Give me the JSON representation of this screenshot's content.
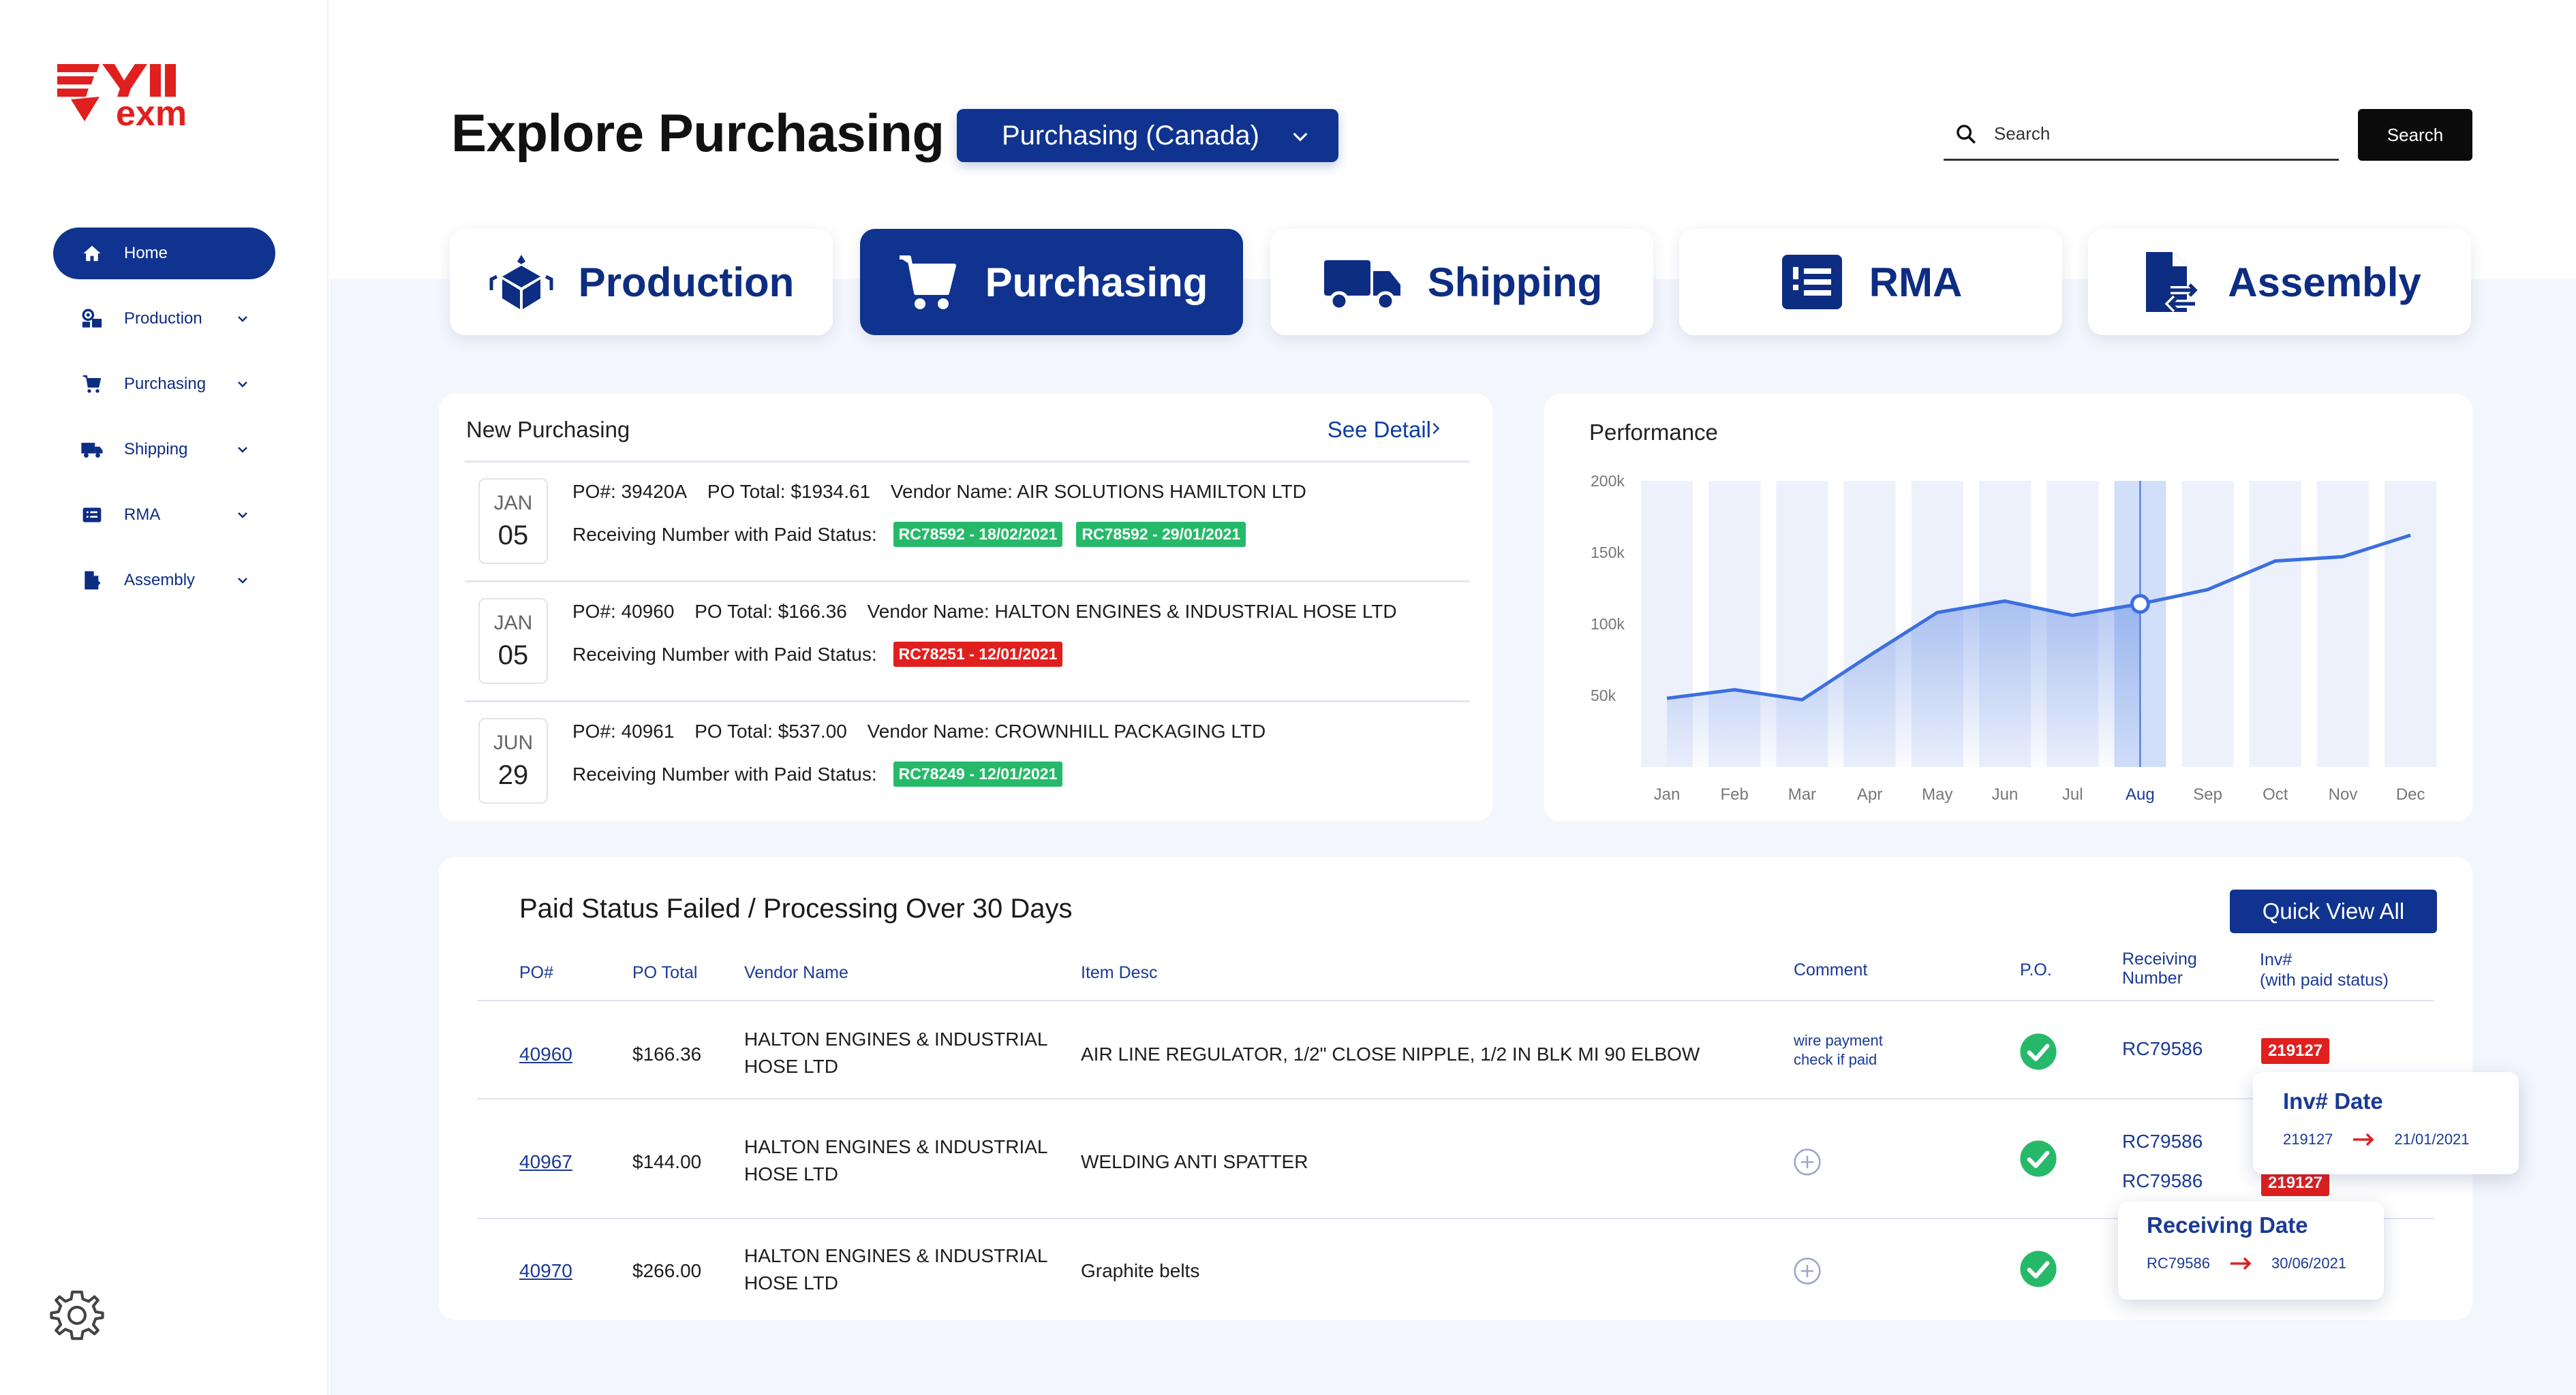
{
  "brand": {
    "logo_text": "exm",
    "accent": "#0f338f",
    "logo_red": "#e0201f"
  },
  "sidebar": {
    "items": [
      {
        "label": "Home",
        "icon": "home-icon",
        "active": true
      },
      {
        "label": "Production",
        "icon": "production-icon"
      },
      {
        "label": "Purchasing",
        "icon": "cart-icon"
      },
      {
        "label": "Shipping",
        "icon": "truck-icon"
      },
      {
        "label": "RMA",
        "icon": "list-icon"
      },
      {
        "label": "Assembly",
        "icon": "assembly-icon"
      }
    ],
    "settings_icon": "gear-icon"
  },
  "header": {
    "title": "Explore Purchasing",
    "selector": "Purchasing (Canada)",
    "search_placeholder": "Search",
    "search_button": "Search"
  },
  "tabs": [
    {
      "label": "Production",
      "icon": "cube-icon"
    },
    {
      "label": "Purchasing",
      "icon": "cart-icon",
      "active": true
    },
    {
      "label": "Shipping",
      "icon": "truck-icon"
    },
    {
      "label": "RMA",
      "icon": "list-icon"
    },
    {
      "label": "Assembly",
      "icon": "document-swap-icon"
    }
  ],
  "new_purchasing": {
    "title": "New Purchasing",
    "link": "See Detail",
    "rows": [
      {
        "month": "JAN",
        "day": "05",
        "po": "PO#: 39420A",
        "total": "PO Total: $1934.61",
        "vendor": "Vendor Name: AIR SOLUTIONS HAMILTON LTD",
        "status_label": "Receiving Number with Paid Status:",
        "badges": [
          {
            "text": "RC78592 - 18/02/2021",
            "color": "green"
          },
          {
            "text": "RC78592 - 29/01/2021",
            "color": "green"
          }
        ]
      },
      {
        "month": "JAN",
        "day": "05",
        "po": "PO#: 40960",
        "total": "PO Total: $166.36",
        "vendor": "Vendor Name: HALTON ENGINES & INDUSTRIAL HOSE LTD",
        "status_label": "Receiving Number with Paid Status:",
        "badges": [
          {
            "text": "RC78251 - 12/01/2021",
            "color": "red"
          }
        ]
      },
      {
        "month": "JUN",
        "day": "29",
        "po": "PO#: 40961",
        "total": "PO Total: $537.00",
        "vendor": "Vendor Name: CROWNHILL PACKAGING LTD",
        "status_label": "Receiving Number with Paid Status:",
        "badges": [
          {
            "text": "RC78249 - 12/01/2021",
            "color": "green"
          }
        ]
      }
    ]
  },
  "performance": {
    "title": "Performance"
  },
  "chart_data": {
    "type": "area",
    "categories": [
      "Jan",
      "Feb",
      "Mar",
      "Apr",
      "May",
      "Jun",
      "Jul",
      "Aug",
      "Sep",
      "Oct",
      "Nov",
      "Dec"
    ],
    "values": [
      48000,
      54000,
      47000,
      78000,
      108000,
      116000,
      106000,
      114000,
      124000,
      144000,
      147000,
      162000
    ],
    "y_ticks": [
      "200k",
      "150k",
      "100k",
      "50k"
    ],
    "ylim": [
      0,
      200000
    ],
    "highlight": "Aug",
    "colors": {
      "line": "#3b6fe0",
      "bar": "#edf1fb",
      "bar_highlight": "#d2dff8"
    }
  },
  "paid_failed": {
    "title": "Paid Status Failed / Processing Over 30 Days",
    "button": "Quick View All",
    "headers": {
      "po": "PO#",
      "total": "PO Total",
      "vendor": "Vendor Name",
      "item": "Item Desc",
      "comment": "Comment",
      "po_status": "P.O.",
      "receiving_1": "Receiving",
      "receiving_2": "Number",
      "inv_1": "Inv#",
      "inv_2": "(with paid status)"
    },
    "rows": [
      {
        "po": "40960",
        "total": "$166.36",
        "vendor_1": "HALTON ENGINES & INDUSTRIAL",
        "vendor_2": "HOSE LTD",
        "item": "AIR LINE REGULATOR, 1/2\" CLOSE NIPPLE, 1/2 IN BLK MI 90 ELBOW",
        "comment_1": "wire payment",
        "comment_2": "check if paid",
        "receiving": [
          "RC79586"
        ],
        "inv": "219127"
      },
      {
        "po": "40967",
        "total": "$144.00",
        "vendor_1": "HALTON ENGINES & INDUSTRIAL",
        "vendor_2": "HOSE LTD",
        "item": "WELDING ANTI SPATTER",
        "receiving": [
          "RC79586",
          "RC79586"
        ],
        "inv": "219127"
      },
      {
        "po": "40970",
        "total": "$266.00",
        "vendor_1": "HALTON ENGINES & INDUSTRIAL",
        "vendor_2": "HOSE LTD",
        "item": "Graphite belts",
        "receiving": []
      }
    ],
    "inv_popup": {
      "title": "Inv# Date",
      "from": "219127",
      "to": "21/01/2021"
    },
    "receiving_popup": {
      "title": "Receiving Date",
      "from": "RC79586",
      "to": "30/06/2021"
    }
  }
}
